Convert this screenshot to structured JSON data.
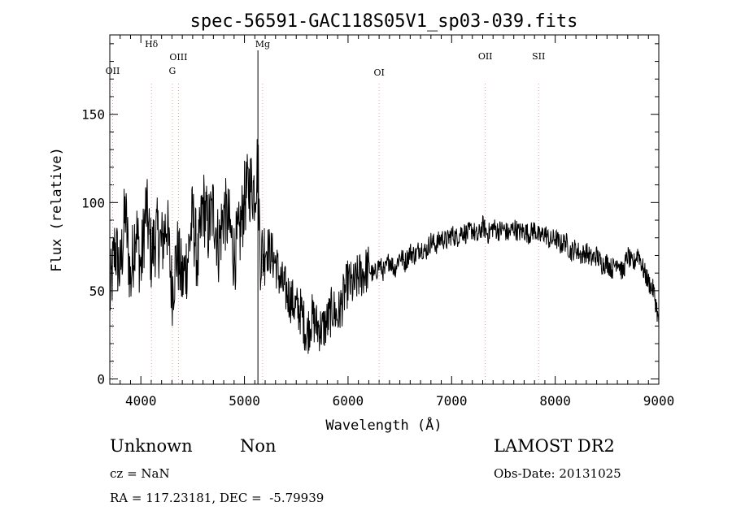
{
  "chart_data": {
    "type": "line",
    "title": "spec-56591-GAC118S05V1_sp03-039.fits",
    "xlabel": "Wavelength (Å)",
    "ylabel": "Flux (relative)",
    "xlim": [
      3700,
      9000
    ],
    "ylim": [
      -3,
      195
    ],
    "x_ticks": [
      4000,
      5000,
      6000,
      7000,
      8000,
      9000
    ],
    "y_ticks": [
      0,
      50,
      100,
      150
    ],
    "grid": false,
    "line_color": "#000000",
    "marker_color": "#e8a0a0",
    "series": [
      {
        "x": [
          3700,
          3750,
          3800,
          3850,
          3900,
          3950,
          4000,
          4050,
          4100,
          4150,
          4200,
          4250,
          4300,
          4350,
          4400,
          4450,
          4500,
          4550,
          4600,
          4650,
          4700,
          4750,
          4800,
          4850,
          4900,
          4950,
          5000,
          5050,
          5100,
          5130,
          5150,
          5175,
          5200,
          5250,
          5300,
          5350,
          5400,
          5450,
          5500,
          5550,
          5600,
          5650,
          5700,
          5750,
          5800,
          5850,
          5900,
          5950,
          6000,
          6050,
          6100,
          6150,
          6200,
          6250,
          6300,
          6350,
          6400,
          6450,
          6500,
          6550,
          6600,
          6650,
          6700,
          6750,
          6800,
          6850,
          6900,
          6950,
          7000,
          7050,
          7100,
          7150,
          7200,
          7250,
          7300,
          7350,
          7400,
          7450,
          7500,
          7550,
          7600,
          7650,
          7700,
          7750,
          7800,
          7850,
          7900,
          7950,
          8000,
          8050,
          8100,
          8150,
          8200,
          8250,
          8300,
          8350,
          8400,
          8450,
          8500,
          8550,
          8600,
          8650,
          8700,
          8750,
          8800,
          8850,
          8900,
          8950,
          8980,
          9000
        ],
        "y": [
          45,
          75,
          60,
          95,
          55,
          88,
          62,
          98,
          70,
          82,
          75,
          90,
          50,
          72,
          55,
          68,
          92,
          65,
          100,
          85,
          97,
          75,
          95,
          88,
          70,
          80,
          102,
          110,
          108,
          125,
          72,
          70,
          75,
          72,
          66,
          55,
          50,
          45,
          40,
          38,
          25,
          35,
          30,
          28,
          32,
          40,
          35,
          45,
          55,
          52,
          58,
          60,
          63,
          58,
          65,
          60,
          68,
          62,
          70,
          66,
          72,
          70,
          75,
          72,
          78,
          76,
          80,
          78,
          82,
          80,
          84,
          82,
          85,
          80,
          87,
          82,
          86,
          84,
          85,
          82,
          86,
          83,
          84,
          82,
          85,
          80,
          83,
          78,
          80,
          76,
          78,
          72,
          74,
          70,
          72,
          68,
          70,
          65,
          66,
          62,
          68,
          60,
          70,
          64,
          72,
          62,
          55,
          50,
          40,
          30
        ]
      }
    ],
    "lines": [
      {
        "label": "OII",
        "x": 3727
      },
      {
        "label": "Hδ",
        "x": 4102
      },
      {
        "label": "OIII",
        "x": 4363
      },
      {
        "label": "G",
        "x": 4304
      },
      {
        "label": "Mg",
        "x": 5175
      },
      {
        "label": "OI",
        "x": 6300
      },
      {
        "label": "OII",
        "x": 7325
      },
      {
        "label": "SII",
        "x": 7840
      }
    ]
  },
  "info": {
    "class": "Unknown",
    "subclass": "Non",
    "survey": "LAMOST DR2",
    "cz": "cz = NaN",
    "obs_date": "Obs-Date: 20131025",
    "ra_dec": "RA = 117.23181, DEC =  -5.79939"
  }
}
